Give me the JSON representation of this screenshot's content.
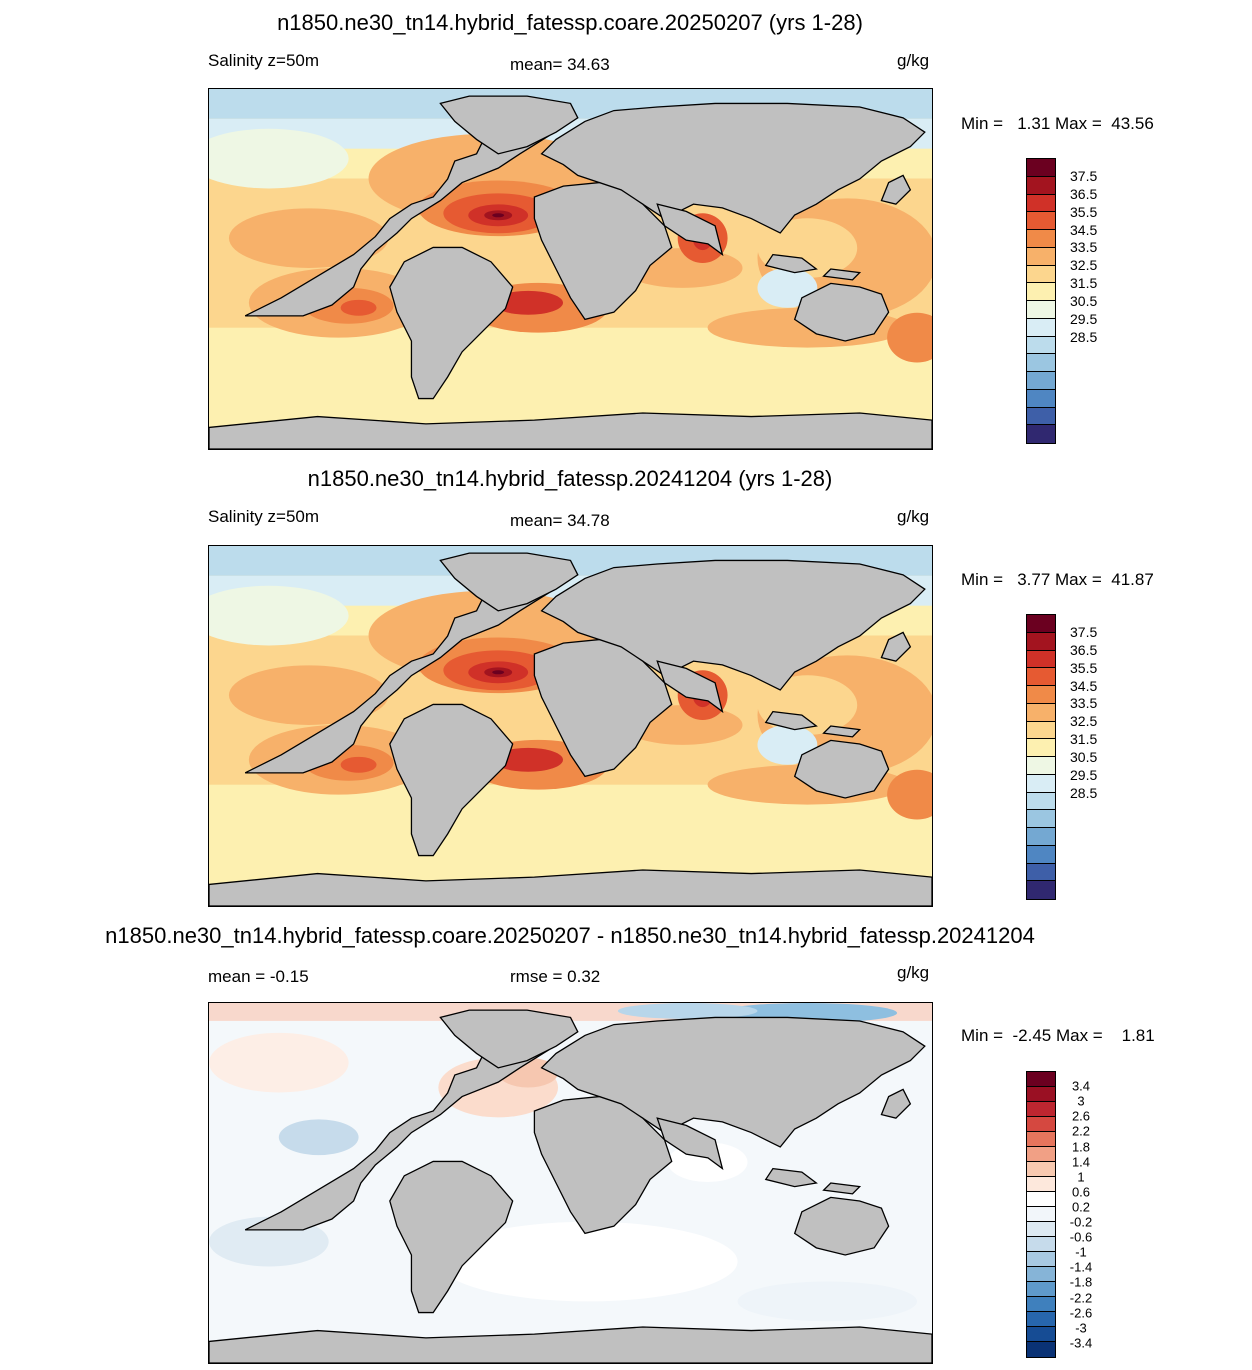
{
  "panels": [
    {
      "title": "n1850.ne30_tn14.hybrid_fatessp.coare.20250207 (yrs 1-28)",
      "left_label": "Salinity z=50m",
      "center_label": "mean=  34.63",
      "units": "g/kg",
      "minmax": "Min =   1.31 Max =  43.56"
    },
    {
      "title": "n1850.ne30_tn14.hybrid_fatessp.20241204 (yrs 1-28)",
      "left_label": "Salinity z=50m",
      "center_label": "mean=  34.78",
      "units": "g/kg",
      "minmax": "Min =   3.77 Max =  41.87"
    },
    {
      "title": "n1850.ne30_tn14.hybrid_fatessp.coare.20250207 - n1850.ne30_tn14.hybrid_fatessp.20241204",
      "left_label": "mean =  -0.15",
      "center_label": "rmse =    0.32",
      "units": "g/kg",
      "minmax": "Min =  -2.45 Max =    1.81"
    }
  ],
  "salinity_colorbar": {
    "colors": [
      "#6b0020",
      "#a3141f",
      "#d03128",
      "#e65a32",
      "#f08a48",
      "#f7b16a",
      "#fcd68e",
      "#fdf0b0",
      "#eef7e4",
      "#d9edf5",
      "#bcdcec",
      "#9bc6e1",
      "#74a8d2",
      "#4f86c2",
      "#3e5fa8",
      "#302870"
    ],
    "labels": [
      "37.5",
      "36.5",
      "35.5",
      "34.5",
      "33.5",
      "32.5",
      "31.5",
      "30.5",
      "29.5",
      "28.5"
    ]
  },
  "diff_colorbar": {
    "colors": [
      "#6b0020",
      "#9a1023",
      "#bd2630",
      "#d54840",
      "#e6755d",
      "#f1a085",
      "#f8c9b0",
      "#fde8dc",
      "#ffffff",
      "#f2f6fa",
      "#dde9f2",
      "#c6dbeb",
      "#a8c9e2",
      "#86b4d7",
      "#5f9acb",
      "#3f80bd",
      "#2766ad",
      "#164c94",
      "#0a3275"
    ],
    "labels": [
      "3.4",
      "3",
      "2.6",
      "2.2",
      "1.8",
      "1.4",
      "1",
      "0.6",
      "0.2",
      "-0.2",
      "-0.6",
      "-1",
      "-1.4",
      "-1.8",
      "-2.2",
      "-2.6",
      "-3",
      "-3.4"
    ]
  },
  "colors": {
    "land": "#c0c0c0",
    "coast": "#000000"
  }
}
